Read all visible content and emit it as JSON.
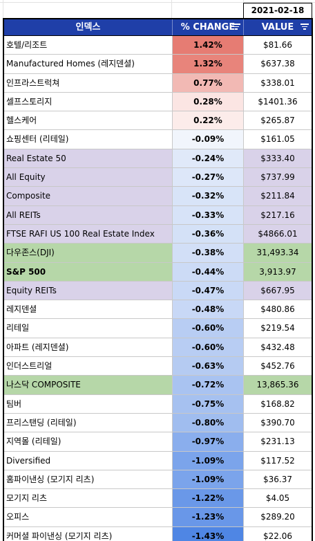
{
  "date": "2021-02-18",
  "headers": {
    "index": "인덱스",
    "change": "% CHANGE",
    "value": "VALUE"
  },
  "colors": {
    "header_bg": "#1f3fa8",
    "purple_row": "#d9d2e9",
    "green_row": "#b6d7a8",
    "white_row": "#ffffff"
  },
  "rows": [
    {
      "name": "호텔/리조트",
      "change": "1.42%",
      "value": "$81.66",
      "bg": "white",
      "change_color": "#e67c73",
      "bold": false
    },
    {
      "name": "Manufactured Homes (레지덴셜)",
      "change": "1.32%",
      "value": "$637.38",
      "bg": "white",
      "change_color": "#e8847b",
      "bold": false
    },
    {
      "name": "인프라스트럭쳐",
      "change": "0.77%",
      "value": "$338.01",
      "bg": "white",
      "change_color": "#f2b9b4",
      "bold": false
    },
    {
      "name": "셀프스토리지",
      "change": "0.28%",
      "value": "$1401.36",
      "bg": "white",
      "change_color": "#fbe5e3",
      "bold": false
    },
    {
      "name": "헬스케어",
      "change": "0.22%",
      "value": "$265.87",
      "bg": "white",
      "change_color": "#fcecea",
      "bold": false
    },
    {
      "name": "쇼핑센터 (리테일)",
      "change": "-0.09%",
      "value": "$161.05",
      "bg": "white",
      "change_color": "#f1f5fc",
      "bold": false
    },
    {
      "name": "Real Estate 50",
      "change": "-0.24%",
      "value": "$333.40",
      "bg": "purple",
      "change_color": "#e0e9f9",
      "bold": false
    },
    {
      "name": "All Equity",
      "change": "-0.27%",
      "value": "$737.99",
      "bg": "purple",
      "change_color": "#dde7f9",
      "bold": false
    },
    {
      "name": "Composite",
      "change": "-0.32%",
      "value": "$211.84",
      "bg": "purple",
      "change_color": "#d8e4f8",
      "bold": false
    },
    {
      "name": "All REITs",
      "change": "-0.33%",
      "value": "$217.16",
      "bg": "purple",
      "change_color": "#d7e3f8",
      "bold": false
    },
    {
      "name": "FTSE RAFI US 100 Real Estate Index",
      "change": "-0.36%",
      "value": "$4866.01",
      "bg": "purple",
      "change_color": "#d4e1f7",
      "bold": false
    },
    {
      "name": "다우존스(DJI)",
      "change": "-0.38%",
      "value": "31,493.34",
      "bg": "green",
      "change_color": "#d2dff7",
      "bold": false
    },
    {
      "name": "S&P 500",
      "change": "-0.44%",
      "value": "3,913.97",
      "bg": "green",
      "change_color": "#ccdbf6",
      "bold": true
    },
    {
      "name": "Equity REITs",
      "change": "-0.47%",
      "value": "$667.95",
      "bg": "purple",
      "change_color": "#c9d9f6",
      "bold": false
    },
    {
      "name": "레지덴셜",
      "change": "-0.48%",
      "value": "$480.86",
      "bg": "white",
      "change_color": "#c8d8f6",
      "bold": false
    },
    {
      "name": "리테일",
      "change": "-0.60%",
      "value": "$219.54",
      "bg": "white",
      "change_color": "#b8cdf3",
      "bold": false
    },
    {
      "name": "아파트 (레지덴셜)",
      "change": "-0.60%",
      "value": "$432.48",
      "bg": "white",
      "change_color": "#b8cdf3",
      "bold": false
    },
    {
      "name": "인더스트리얼",
      "change": "-0.63%",
      "value": "$452.76",
      "bg": "white",
      "change_color": "#b5cbf2",
      "bold": false
    },
    {
      "name": "나스닥 COMPOSITE",
      "change": "-0.72%",
      "value": "13,865.36",
      "bg": "green",
      "change_color": "#a9c3f1",
      "bold": false
    },
    {
      "name": "팀버",
      "change": "-0.75%",
      "value": "$168.82",
      "bg": "white",
      "change_color": "#a6c1f0",
      "bold": false
    },
    {
      "name": "프리스탠딩 (리테일)",
      "change": "-0.80%",
      "value": "$390.70",
      "bg": "white",
      "change_color": "#a0bdef",
      "bold": false
    },
    {
      "name": "지역몰 (리테일)",
      "change": "-0.97%",
      "value": "$231.13",
      "bg": "white",
      "change_color": "#8aaeed",
      "bold": false
    },
    {
      "name": "Diversified",
      "change": "-1.09%",
      "value": "$117.52",
      "bg": "white",
      "change_color": "#7ba4eb",
      "bold": false
    },
    {
      "name": "홈파이낸싱 (모기지 리츠)",
      "change": "-1.09%",
      "value": "$36.37",
      "bg": "white",
      "change_color": "#7ba4eb",
      "bold": false
    },
    {
      "name": "모기지 리츠",
      "change": "-1.22%",
      "value": "$4.05",
      "bg": "white",
      "change_color": "#6a98e8",
      "bold": false
    },
    {
      "name": "오피스",
      "change": "-1.23%",
      "value": "$289.20",
      "bg": "white",
      "change_color": "#6997e8",
      "bold": false
    },
    {
      "name": "커머셜 파이낸싱 (모기지 리츠)",
      "change": "-1.43%",
      "value": "$22.06",
      "bg": "white",
      "change_color": "#4f86e4",
      "bold": false
    }
  ]
}
